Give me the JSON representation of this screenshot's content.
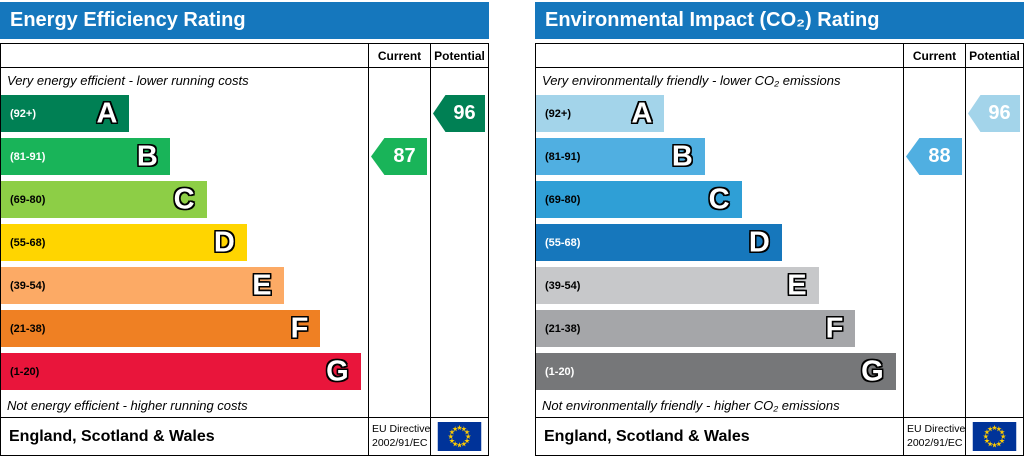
{
  "theme": {
    "header_bg": "#1577bd",
    "header_text": "#ffffff",
    "table_border": "#000000",
    "eu_flag_blue": "#003399",
    "eu_flag_star": "#ffcc00"
  },
  "charts": [
    {
      "title": "Energy Efficiency Rating",
      "columns": {
        "current": "Current",
        "potential": "Potential"
      },
      "top_note": "Very energy efficient - lower running costs",
      "bottom_note": "Not energy efficient - higher running costs",
      "bands": [
        {
          "letter": "A",
          "range": "(92+)",
          "color": "#008054",
          "label_color": "#ffffff",
          "width_pct": 35
        },
        {
          "letter": "B",
          "range": "(81-91)",
          "color": "#19b459",
          "label_color": "#ffffff",
          "width_pct": 46
        },
        {
          "letter": "C",
          "range": "(69-80)",
          "color": "#8dce46",
          "label_color": "#000000",
          "width_pct": 56
        },
        {
          "letter": "D",
          "range": "(55-68)",
          "color": "#ffd500",
          "label_color": "#000000",
          "width_pct": 67
        },
        {
          "letter": "E",
          "range": "(39-54)",
          "color": "#fcaa65",
          "label_color": "#000000",
          "width_pct": 77
        },
        {
          "letter": "F",
          "range": "(21-38)",
          "color": "#ef8023",
          "label_color": "#000000",
          "width_pct": 87
        },
        {
          "letter": "G",
          "range": "(1-20)",
          "color": "#e9153b",
          "label_color": "#000000",
          "width_pct": 98
        }
      ],
      "current": {
        "value": "87",
        "band": "B",
        "color": "#19b459"
      },
      "potential": {
        "value": "96",
        "band": "A",
        "color": "#008054"
      },
      "footer": {
        "region": "England, Scotland & Wales",
        "directive_line1": "EU Directive",
        "directive_line2": "2002/91/EC"
      }
    },
    {
      "title": "Environmental Impact (CO₂) Rating",
      "columns": {
        "current": "Current",
        "potential": "Potential"
      },
      "top_note": "Very environmentally friendly - lower CO₂ emissions",
      "bottom_note": "Not environmentally friendly - higher CO₂ emissions",
      "bands": [
        {
          "letter": "A",
          "range": "(92+)",
          "color": "#a3d4ea",
          "label_color": "#000000",
          "width_pct": 35
        },
        {
          "letter": "B",
          "range": "(81-91)",
          "color": "#50afe1",
          "label_color": "#000000",
          "width_pct": 46
        },
        {
          "letter": "C",
          "range": "(69-80)",
          "color": "#2f9fd6",
          "label_color": "#000000",
          "width_pct": 56
        },
        {
          "letter": "D",
          "range": "(55-68)",
          "color": "#1677bc",
          "label_color": "#ffffff",
          "width_pct": 67
        },
        {
          "letter": "E",
          "range": "(39-54)",
          "color": "#c7c8ca",
          "label_color": "#000000",
          "width_pct": 77
        },
        {
          "letter": "F",
          "range": "(21-38)",
          "color": "#a5a6a9",
          "label_color": "#000000",
          "width_pct": 87
        },
        {
          "letter": "G",
          "range": "(1-20)",
          "color": "#767779",
          "label_color": "#ffffff",
          "width_pct": 98
        }
      ],
      "current": {
        "value": "88",
        "band": "B",
        "color": "#50afe1"
      },
      "potential": {
        "value": "96",
        "band": "A",
        "color": "#a3d4ea"
      },
      "footer": {
        "region": "England, Scotland & Wales",
        "directive_line1": "EU Directive",
        "directive_line2": "2002/91/EC"
      }
    }
  ],
  "chart_data": [
    {
      "type": "bar",
      "title": "Energy Efficiency Rating",
      "bands": [
        {
          "band": "A",
          "range": [
            92,
            100
          ]
        },
        {
          "band": "B",
          "range": [
            81,
            91
          ]
        },
        {
          "band": "C",
          "range": [
            69,
            80
          ]
        },
        {
          "band": "D",
          "range": [
            55,
            68
          ]
        },
        {
          "band": "E",
          "range": [
            39,
            54
          ]
        },
        {
          "band": "F",
          "range": [
            21,
            38
          ]
        },
        {
          "band": "G",
          "range": [
            1,
            20
          ]
        }
      ],
      "current": {
        "value": 87,
        "band": "B"
      },
      "potential": {
        "value": 96,
        "band": "A"
      },
      "legend": [
        "Current",
        "Potential"
      ]
    },
    {
      "type": "bar",
      "title": "Environmental Impact (CO₂) Rating",
      "bands": [
        {
          "band": "A",
          "range": [
            92,
            100
          ]
        },
        {
          "band": "B",
          "range": [
            81,
            91
          ]
        },
        {
          "band": "C",
          "range": [
            69,
            80
          ]
        },
        {
          "band": "D",
          "range": [
            55,
            68
          ]
        },
        {
          "band": "E",
          "range": [
            39,
            54
          ]
        },
        {
          "band": "F",
          "range": [
            21,
            38
          ]
        },
        {
          "band": "G",
          "range": [
            1,
            20
          ]
        }
      ],
      "current": {
        "value": 88,
        "band": "B"
      },
      "potential": {
        "value": 96,
        "band": "A"
      },
      "legend": [
        "Current",
        "Potential"
      ]
    }
  ]
}
